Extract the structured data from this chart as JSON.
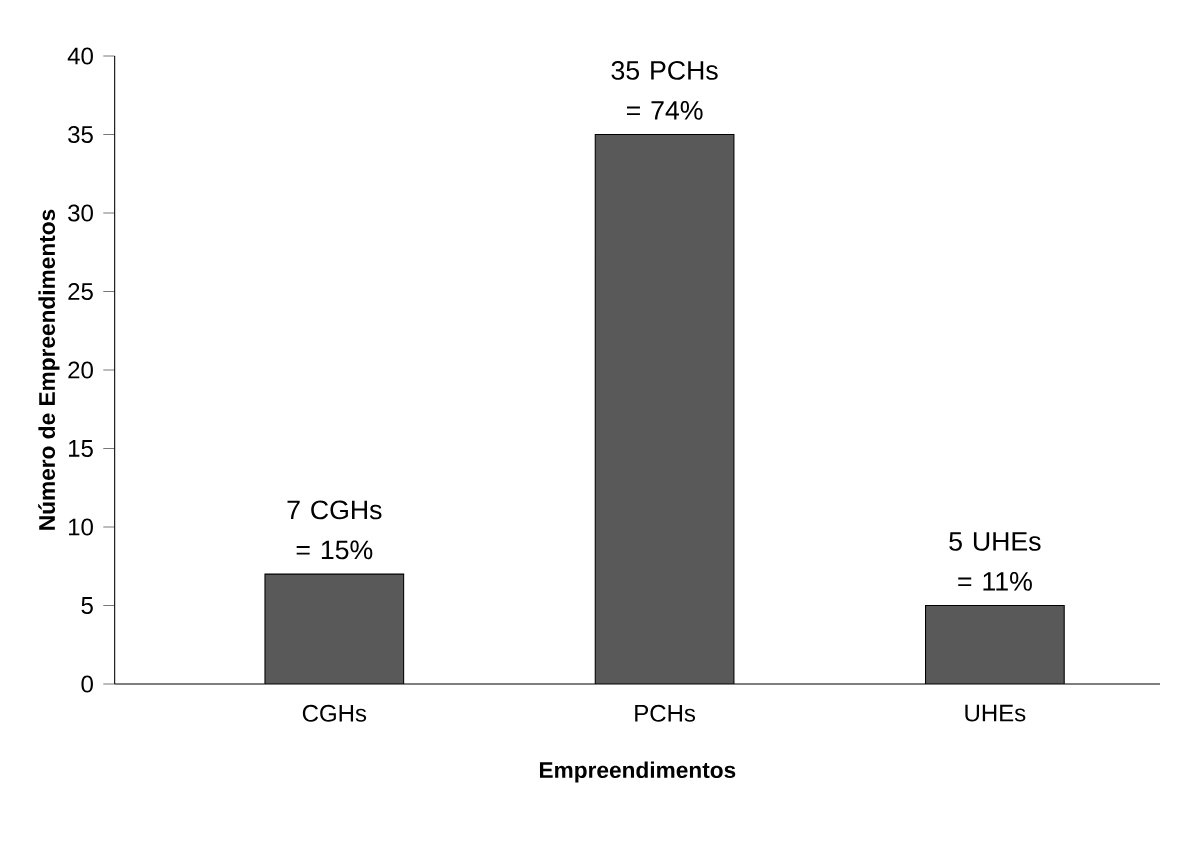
{
  "chart_data": {
    "type": "bar",
    "xlabel": "Empreendimentos",
    "ylabel": "Número de Empreendimentos",
    "categories": [
      "CGHs",
      "PCHs",
      "UHEs"
    ],
    "values": [
      7,
      35,
      5
    ],
    "value_labels": [
      "7 CGHs = 15%",
      "35 PCHs = 74%",
      "5 UHEs = 11%"
    ],
    "color": "#595959",
    "ylim": [
      0,
      40
    ],
    "yticks": [
      0,
      5,
      10,
      15,
      20,
      25,
      30,
      35,
      40
    ]
  }
}
